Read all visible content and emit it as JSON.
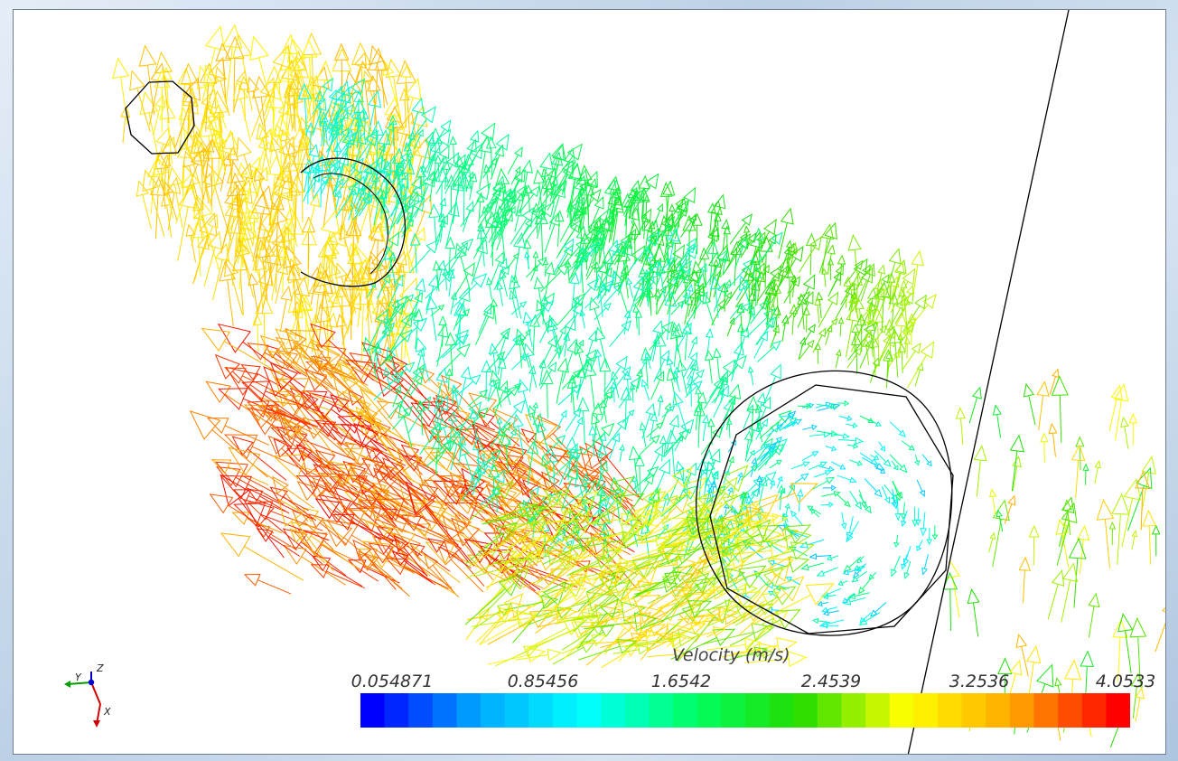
{
  "colorbar": {
    "title": "Velocity (m/s)",
    "ticks": [
      "0.054871",
      "0.85456",
      "1.6542",
      "2.4539",
      "3.2536",
      "4.0533"
    ],
    "min": 0.054871,
    "max": 4.0533,
    "bands": 32,
    "colormap": [
      "#0000ff",
      "#00aaff",
      "#00ffff",
      "#00ff66",
      "#22dd00",
      "#ffff00",
      "#ffaa00",
      "#ff0000"
    ]
  },
  "axes_widget": {
    "labels": {
      "y": "Y",
      "z": "Z",
      "x": "X"
    },
    "colors": {
      "y": "#00a000",
      "z": "#0000d0",
      "x": "#d00000"
    }
  },
  "scene": {
    "background": "#ffffff",
    "outline_color": "#000000"
  }
}
